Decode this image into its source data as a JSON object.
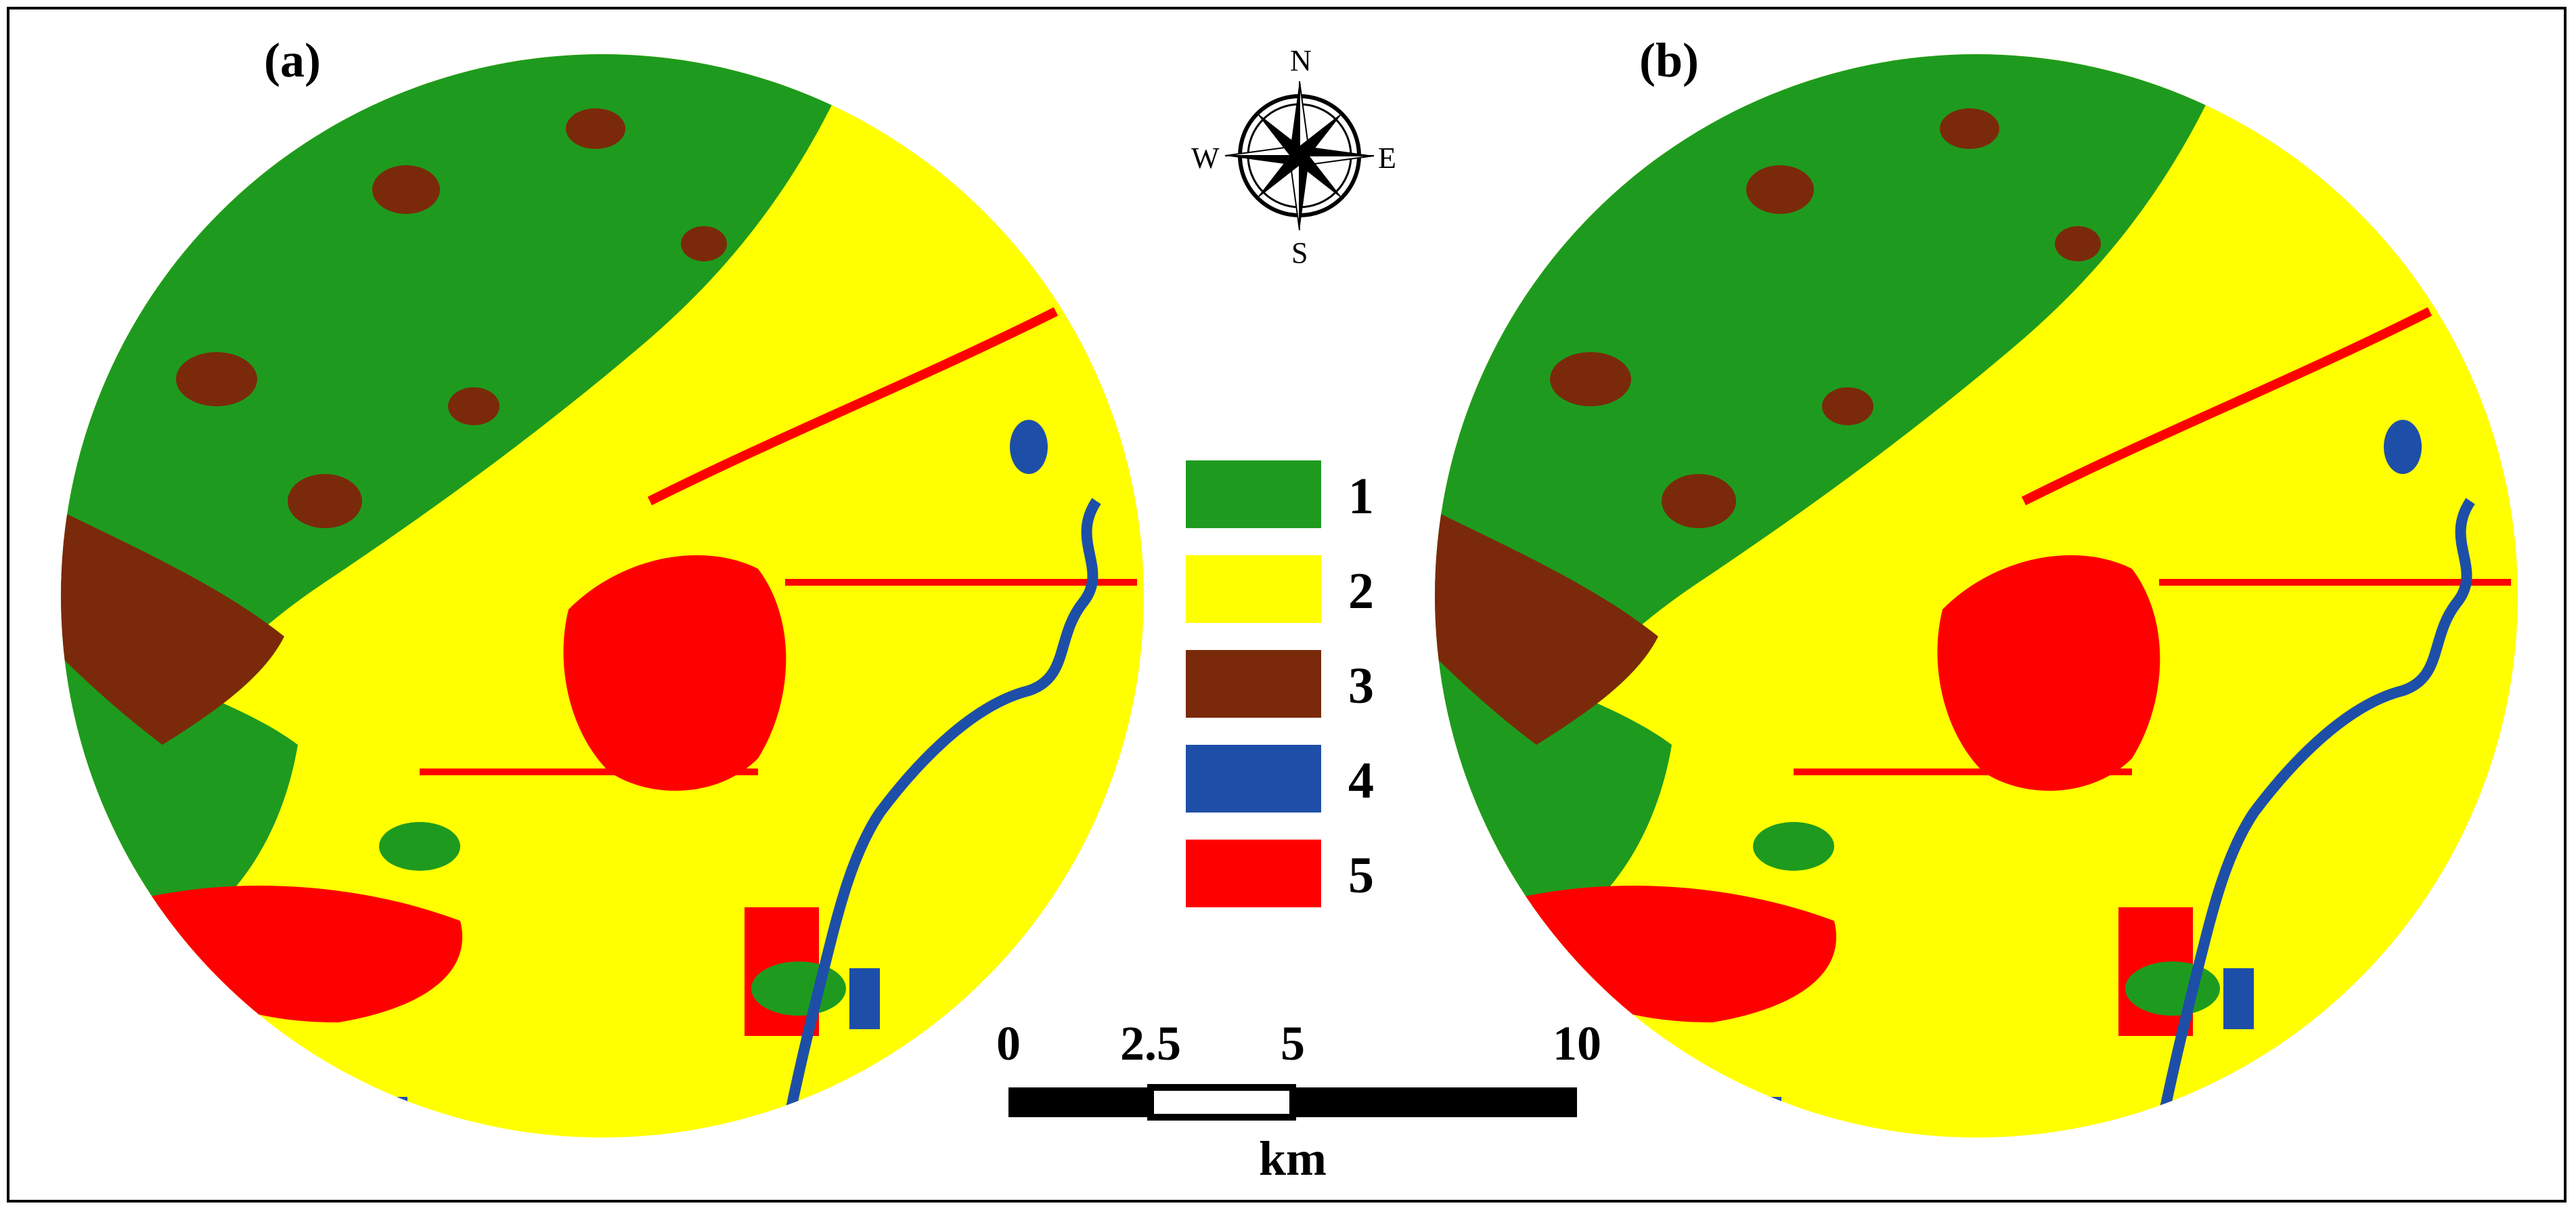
{
  "panels": [
    {
      "label": "(a)"
    },
    {
      "label": "(b)"
    }
  ],
  "compass": {
    "north": "N",
    "south": "S",
    "east": "E",
    "west": "W"
  },
  "legend": [
    {
      "label": "1",
      "color": "#1e9b1e"
    },
    {
      "label": "2",
      "color": "#ffff00"
    },
    {
      "label": "3",
      "color": "#7a2a0a"
    },
    {
      "label": "4",
      "color": "#1e4fa8"
    },
    {
      "label": "5",
      "color": "#ff0000"
    }
  ],
  "scale_bar": {
    "ticks": [
      "0",
      "2.5",
      "5",
      "10"
    ],
    "tick_values": [
      0,
      2.5,
      5,
      10
    ],
    "unit": "km"
  }
}
